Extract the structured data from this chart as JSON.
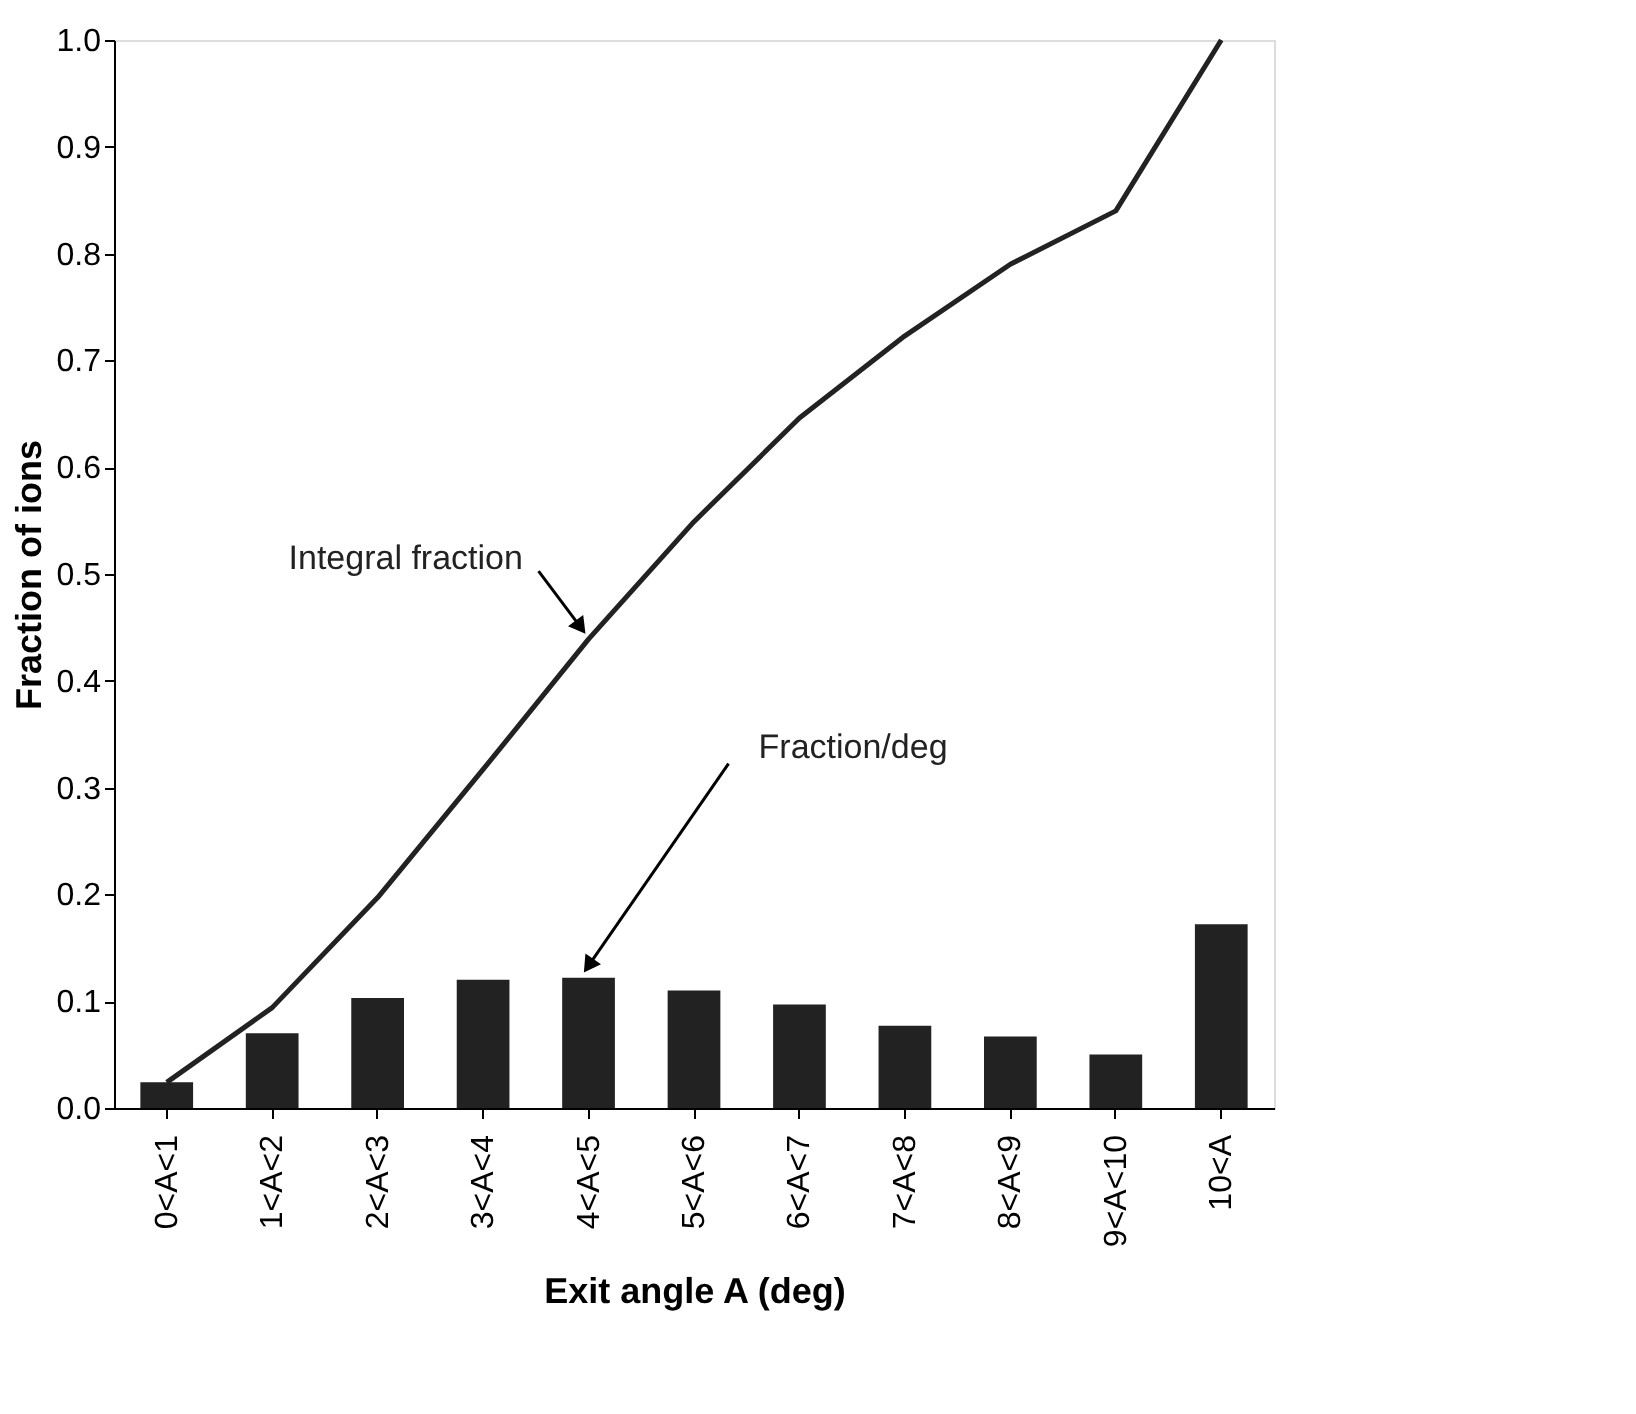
{
  "chart_data": {
    "type": "bar",
    "xlabel": "Exit angle A (deg)",
    "ylabel": "Fraction of ions",
    "categories": [
      "0<A<1",
      "1<A<2",
      "2<A<3",
      "3<A<4",
      "4<A<5",
      "5<A<6",
      "6<A<7",
      "7<A<8",
      "8<A<9",
      "9<A<10",
      "10<A"
    ],
    "series": [
      {
        "name": "Fraction/deg",
        "color": "#222222",
        "values": [
          0.024,
          0.07,
          0.103,
          0.12,
          0.122,
          0.11,
          0.097,
          0.077,
          0.067,
          0.05,
          0.172
        ]
      },
      {
        "name": "Integral fraction",
        "type": "line",
        "color": "#222222",
        "values": [
          0.024,
          0.094,
          0.197,
          0.317,
          0.439,
          0.549,
          0.646,
          0.723,
          0.79,
          0.84,
          1.0
        ]
      }
    ],
    "ylim": [
      0,
      1.0
    ],
    "yticks": [
      {
        "value": 0,
        "label": "0.0"
      },
      0.1,
      0.2,
      0.3,
      0.4,
      0.5,
      0.6,
      0.7,
      0.8,
      0.9,
      {
        "value": 1,
        "label": "1.0"
      }
    ],
    "grid": false,
    "legend": false,
    "marker": "none",
    "line_style": "solid"
  }
}
